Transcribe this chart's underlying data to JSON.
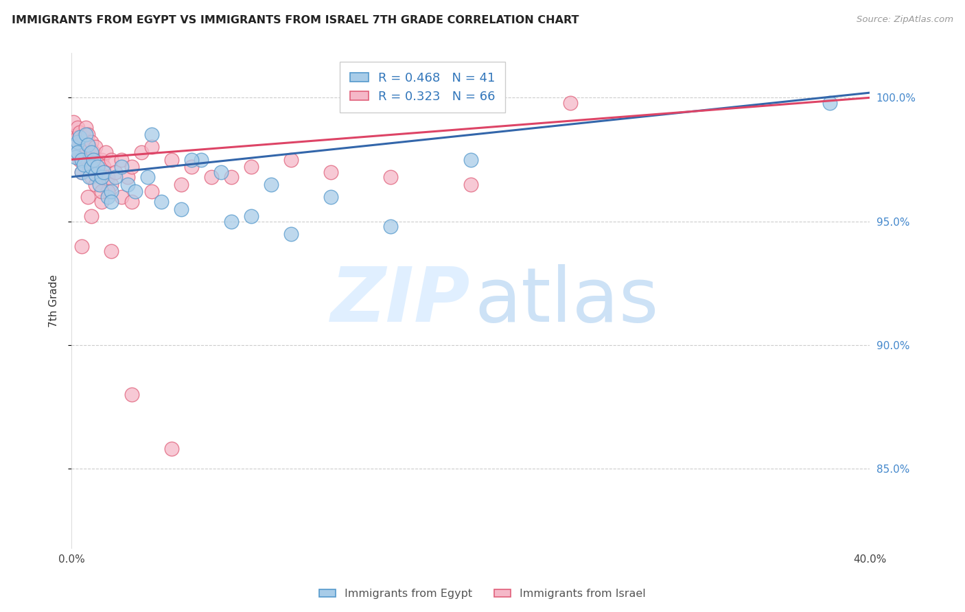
{
  "title": "IMMIGRANTS FROM EGYPT VS IMMIGRANTS FROM ISRAEL 7TH GRADE CORRELATION CHART",
  "source": "Source: ZipAtlas.com",
  "ylabel": "7th Grade",
  "yticks": [
    "85.0%",
    "90.0%",
    "95.0%",
    "100.0%"
  ],
  "ytick_vals": [
    0.85,
    0.9,
    0.95,
    1.0
  ],
  "xlim": [
    0.0,
    0.4
  ],
  "ylim": [
    0.818,
    1.018
  ],
  "egypt_color": "#a8cce8",
  "israel_color": "#f5b8c8",
  "egypt_edge_color": "#5599cc",
  "israel_edge_color": "#e0607a",
  "egypt_line_color": "#3366aa",
  "israel_line_color": "#dd4466",
  "egypt_R": 0.468,
  "egypt_N": 41,
  "israel_R": 0.323,
  "israel_N": 66,
  "egypt_scatter_x": [
    0.001,
    0.002,
    0.003,
    0.003,
    0.004,
    0.005,
    0.005,
    0.006,
    0.007,
    0.008,
    0.009,
    0.01,
    0.01,
    0.011,
    0.012,
    0.013,
    0.014,
    0.015,
    0.016,
    0.018,
    0.02,
    0.022,
    0.025,
    0.028,
    0.032,
    0.038,
    0.045,
    0.055,
    0.065,
    0.075,
    0.09,
    0.11,
    0.13,
    0.16,
    0.04,
    0.02,
    0.06,
    0.08,
    0.1,
    0.2,
    0.38
  ],
  "egypt_scatter_y": [
    0.98,
    0.976,
    0.982,
    0.978,
    0.984,
    0.975,
    0.97,
    0.973,
    0.985,
    0.981,
    0.968,
    0.978,
    0.972,
    0.975,
    0.969,
    0.972,
    0.965,
    0.968,
    0.97,
    0.96,
    0.962,
    0.968,
    0.972,
    0.965,
    0.962,
    0.968,
    0.958,
    0.955,
    0.975,
    0.97,
    0.952,
    0.945,
    0.96,
    0.948,
    0.985,
    0.958,
    0.975,
    0.95,
    0.965,
    0.975,
    0.998
  ],
  "israel_scatter_x": [
    0.001,
    0.001,
    0.002,
    0.002,
    0.003,
    0.003,
    0.003,
    0.004,
    0.004,
    0.005,
    0.005,
    0.005,
    0.006,
    0.006,
    0.007,
    0.007,
    0.008,
    0.008,
    0.009,
    0.009,
    0.01,
    0.01,
    0.01,
    0.011,
    0.011,
    0.012,
    0.012,
    0.013,
    0.014,
    0.015,
    0.015,
    0.016,
    0.017,
    0.018,
    0.02,
    0.02,
    0.022,
    0.025,
    0.028,
    0.03,
    0.035,
    0.04,
    0.05,
    0.06,
    0.08,
    0.11,
    0.13,
    0.16,
    0.2,
    0.25,
    0.008,
    0.012,
    0.015,
    0.018,
    0.025,
    0.03,
    0.04,
    0.055,
    0.07,
    0.09,
    0.005,
    0.01,
    0.015,
    0.02,
    0.03,
    0.05
  ],
  "israel_scatter_y": [
    0.985,
    0.99,
    0.982,
    0.978,
    0.988,
    0.984,
    0.98,
    0.986,
    0.975,
    0.982,
    0.978,
    0.97,
    0.984,
    0.976,
    0.988,
    0.98,
    0.985,
    0.975,
    0.98,
    0.972,
    0.982,
    0.975,
    0.968,
    0.978,
    0.972,
    0.98,
    0.974,
    0.975,
    0.97,
    0.975,
    0.968,
    0.972,
    0.978,
    0.968,
    0.975,
    0.965,
    0.97,
    0.975,
    0.968,
    0.972,
    0.978,
    0.98,
    0.975,
    0.972,
    0.968,
    0.975,
    0.97,
    0.968,
    0.965,
    0.998,
    0.96,
    0.965,
    0.958,
    0.962,
    0.96,
    0.958,
    0.962,
    0.965,
    0.968,
    0.972,
    0.94,
    0.952,
    0.962,
    0.938,
    0.88,
    0.858
  ],
  "watermark_zip_color": "#ddeeff",
  "watermark_atlas_color": "#c8dff5"
}
